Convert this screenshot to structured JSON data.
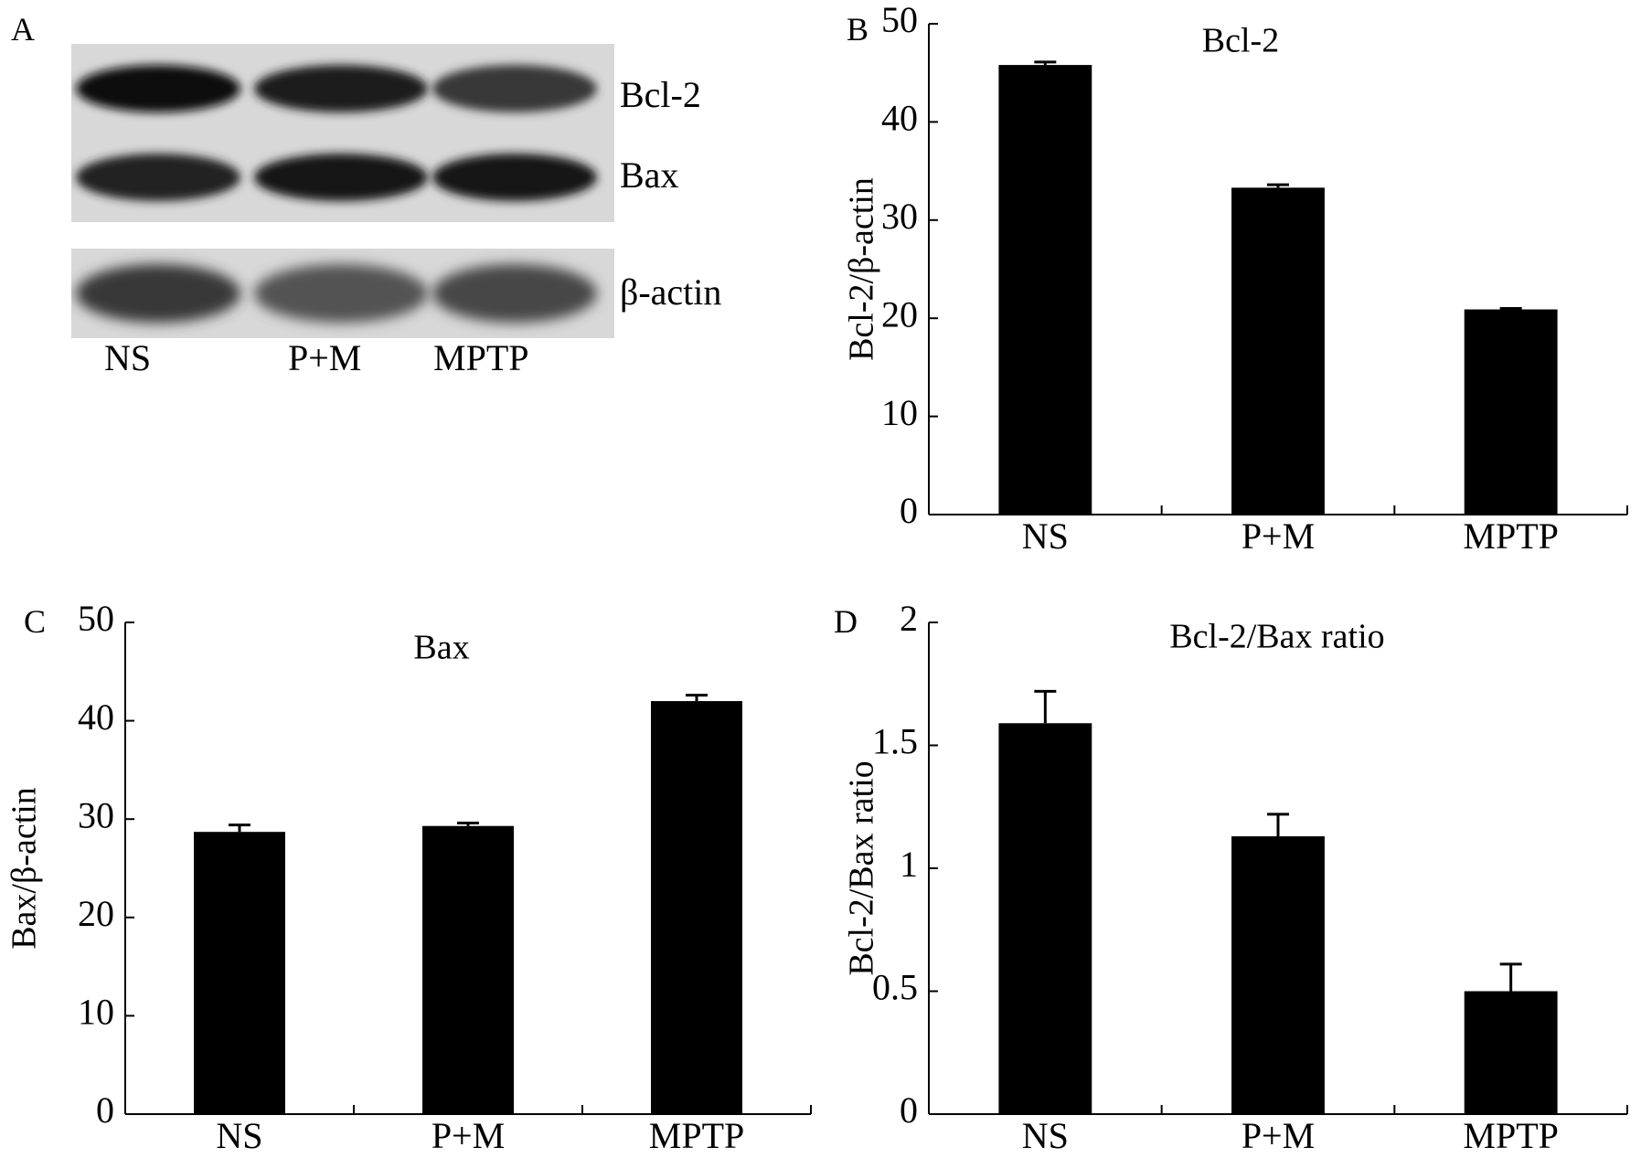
{
  "panel_a": {
    "letter": "A",
    "blots": [
      {
        "label": "Bcl-2",
        "intensities": [
          0.95,
          0.88,
          0.78
        ]
      },
      {
        "label": "Bax",
        "intensities": [
          0.86,
          0.92,
          0.92
        ]
      },
      {
        "label": "β-actin",
        "intensities": [
          0.78,
          0.68,
          0.72
        ]
      }
    ],
    "lanes": [
      "NS",
      "P+M",
      "MPTP"
    ]
  },
  "chart_data": [
    {
      "panel": "B",
      "type": "bar",
      "title": "Bcl-2",
      "xlabel": "",
      "ylabel": "Bcl-2/β-actin",
      "categories": [
        "NS",
        "P+M",
        "MPTP"
      ],
      "values": [
        45.8,
        33.3,
        20.9
      ],
      "errors": [
        0.3,
        0.3,
        0.1
      ],
      "ylim": [
        0,
        50
      ],
      "yticks": [
        0,
        10,
        20,
        30,
        40,
        50
      ],
      "ytick_labels": [
        "0",
        "10",
        "20",
        "30",
        "40",
        "50"
      ],
      "grid": false
    },
    {
      "panel": "C",
      "type": "bar",
      "title": "Bax",
      "xlabel": "",
      "ylabel": "Bax/β-actin",
      "categories": [
        "NS",
        "P+M",
        "MPTP"
      ],
      "values": [
        28.7,
        29.3,
        42.0
      ],
      "errors": [
        0.7,
        0.3,
        0.6
      ],
      "ylim": [
        0,
        50
      ],
      "yticks": [
        0,
        10,
        20,
        30,
        40,
        50
      ],
      "ytick_labels": [
        "0",
        "10",
        "20",
        "30",
        "40",
        "50"
      ],
      "grid": false
    },
    {
      "panel": "D",
      "type": "bar",
      "title": "Bcl-2/Bax  ratio",
      "xlabel": "",
      "ylabel": "Bcl-2/Bax  ratio",
      "categories": [
        "NS",
        "P+M",
        "MPTP"
      ],
      "values": [
        1.59,
        1.13,
        0.5
      ],
      "errors": [
        0.13,
        0.09,
        0.11
      ],
      "ylim": [
        0,
        2
      ],
      "yticks": [
        0,
        0.5,
        1,
        1.5,
        2
      ],
      "ytick_labels": [
        "0",
        "0.5",
        "1",
        "1.5",
        "2"
      ],
      "grid": false
    }
  ]
}
